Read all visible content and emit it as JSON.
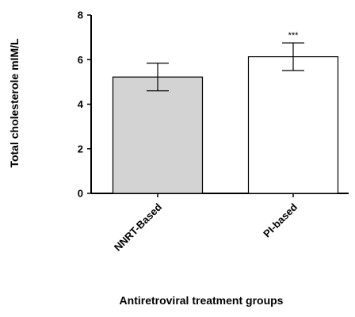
{
  "chart_data": {
    "type": "bar",
    "title": "",
    "xlabel": "Antiretroviral treatment groups",
    "ylabel": "Total cholesterole mIM/L",
    "categories": [
      "NNRT-Based",
      "PI-based"
    ],
    "values": [
      5.22,
      6.13
    ],
    "errors": [
      0.62,
      0.62
    ],
    "annotations": [
      "",
      "***"
    ],
    "bar_colors": [
      "#d3d3d3",
      "#ffffff"
    ],
    "ylim": [
      0,
      8
    ],
    "yticks": [
      "0",
      "2",
      "4",
      "6",
      "8"
    ],
    "grid": false
  }
}
